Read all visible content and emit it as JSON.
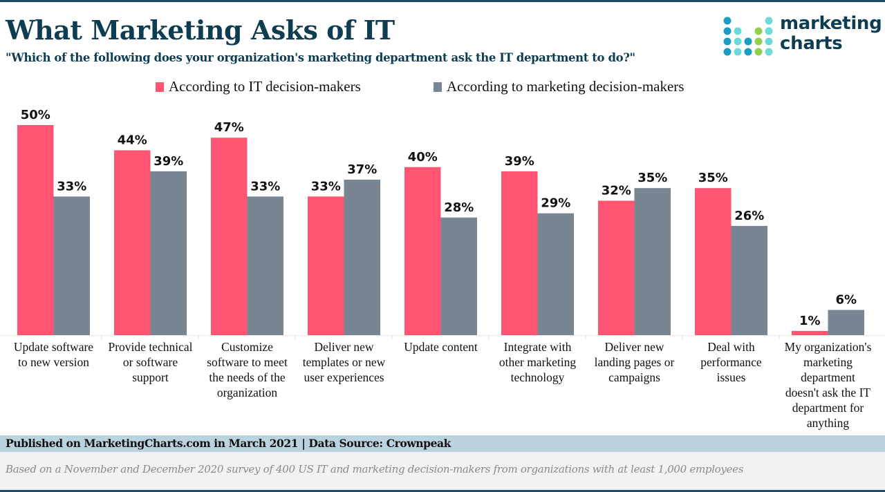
{
  "header": {
    "title": "What Marketing Asks of IT",
    "subtitle": "\"Which of the following does your organization's marketing department ask the IT department to do?\""
  },
  "logo": {
    "line1": "marketing",
    "line2": "charts",
    "colors": {
      "blue": "#1a9cc4",
      "teal": "#6fd8d8",
      "green": "#8fd14f",
      "text": "#0e3d52"
    }
  },
  "colors": {
    "series_it": "#ff5573",
    "series_marketing": "#788592",
    "title": "#0e3d52",
    "footer_band": "#bbd2df",
    "note_band": "#f2f2f2"
  },
  "footer": {
    "published": "Published on MarketingCharts.com in March 2021 | Data Source: Crownpeak",
    "note": "Based on a November and December 2020 survey of 400 US IT and marketing decision-makers from organizations with at least 1,000 employees"
  },
  "chart_data": {
    "type": "bar",
    "title": "What Marketing Asks of IT",
    "subtitle": "\"Which of the following does your organization's marketing department ask the IT department to do?\"",
    "xlabel": "",
    "ylabel": "",
    "ylim": [
      0,
      50
    ],
    "grid": false,
    "legend_position": "top-center",
    "categories": [
      "Update software to new version",
      "Provide technical or software support",
      "Customize software to meet the needs of the organization",
      "Deliver new templates or new user experiences",
      "Update content",
      "Integrate with other marketing technology",
      "Deliver new landing pages or campaigns",
      "Deal with performance issues",
      "My organization's marketing department doesn't ask the IT department for anything"
    ],
    "category_label_lines": [
      [
        "Update software",
        "to new version"
      ],
      [
        "Provide technical",
        "or software",
        "support"
      ],
      [
        "Customize",
        "software to meet",
        "the needs of the",
        "organization"
      ],
      [
        "Deliver new",
        "templates or new",
        "user experiences"
      ],
      [
        "Update content"
      ],
      [
        "Integrate with",
        "other marketing",
        "technology"
      ],
      [
        "Deliver new",
        "landing pages or",
        "campaigns"
      ],
      [
        "Deal with",
        "performance",
        "issues"
      ],
      [
        "My organization's",
        "marketing",
        "department",
        "doesn't ask the IT",
        "department for",
        "anything"
      ]
    ],
    "series": [
      {
        "name": "According to IT decision-makers",
        "values": [
          50,
          44,
          47,
          33,
          40,
          39,
          32,
          35,
          1
        ],
        "color": "#ff5573"
      },
      {
        "name": "According to marketing decision-makers",
        "values": [
          33,
          39,
          33,
          37,
          28,
          29,
          35,
          26,
          6
        ],
        "color": "#788592"
      }
    ],
    "value_suffix": "%"
  }
}
